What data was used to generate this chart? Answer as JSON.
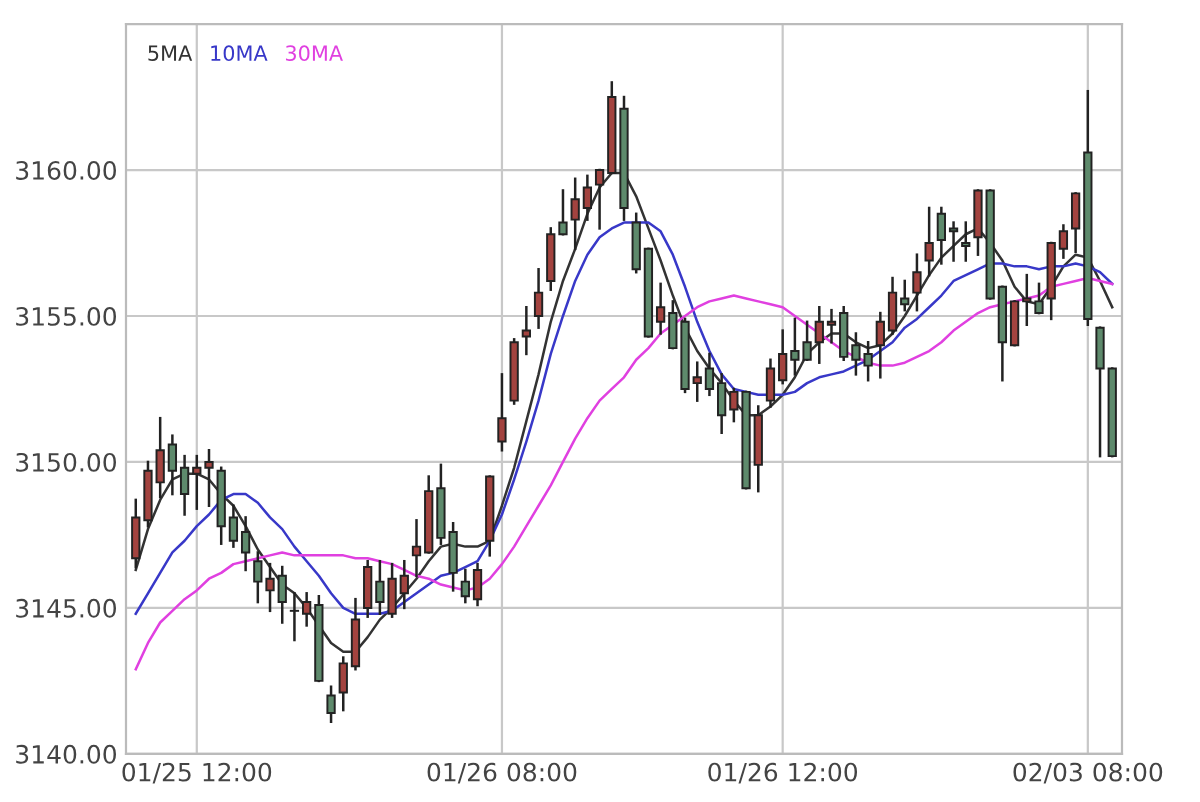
{
  "chart_data": {
    "type": "candlestick",
    "categories": [
      null,
      null,
      null,
      null,
      null,
      "01/25 12:00",
      null,
      null,
      null,
      null,
      null,
      null,
      null,
      null,
      null,
      null,
      null,
      null,
      null,
      null,
      null,
      null,
      null,
      null,
      null,
      null,
      null,
      null,
      null,
      null,
      "01/26 08:00",
      null,
      null,
      null,
      null,
      null,
      null,
      null,
      null,
      null,
      null,
      null,
      null,
      null,
      null,
      null,
      null,
      null,
      null,
      null,
      null,
      null,
      null,
      "01/26 12:00",
      null,
      null,
      null,
      null,
      null,
      null,
      null,
      null,
      null,
      null,
      null,
      null,
      null,
      null,
      null,
      null,
      null,
      null,
      null,
      null,
      null,
      null,
      null,
      null,
      "02/03 08:00",
      null,
      null
    ],
    "ohlc": [
      [
        3146.7,
        3148.7,
        3146.4,
        3148.1
      ],
      [
        3148.0,
        3150.0,
        3147.8,
        3149.7
      ],
      [
        3149.3,
        3151.5,
        3148.8,
        3150.4
      ],
      [
        3150.6,
        3150.9,
        3148.9,
        3149.7
      ],
      [
        3149.8,
        3150.2,
        3148.2,
        3148.9
      ],
      [
        3149.6,
        3150.2,
        3148.4,
        3149.8
      ],
      [
        3149.8,
        3150.4,
        3148.5,
        3150.0
      ],
      [
        3149.7,
        3149.8,
        3147.2,
        3147.8
      ],
      [
        3148.1,
        3148.5,
        3147.1,
        3147.3
      ],
      [
        3147.6,
        3148.1,
        3146.3,
        3146.9
      ],
      [
        3146.6,
        3146.9,
        3145.2,
        3145.9
      ],
      [
        3145.6,
        3146.5,
        3144.9,
        3146.0
      ],
      [
        3146.1,
        3146.4,
        3144.5,
        3145.2
      ],
      [
        3144.9,
        3145.5,
        3143.9,
        3144.9
      ],
      [
        3144.8,
        3145.5,
        3144.4,
        3145.2
      ],
      [
        3145.1,
        3145.4,
        3142.5,
        3142.5
      ],
      [
        3142.0,
        3142.3,
        3141.1,
        3141.4
      ],
      [
        3142.1,
        3143.3,
        3141.5,
        3143.1
      ],
      [
        3143.0,
        3145.3,
        3142.9,
        3144.6
      ],
      [
        3145.0,
        3146.6,
        3144.7,
        3146.4
      ],
      [
        3145.9,
        3146.6,
        3144.8,
        3145.2
      ],
      [
        3144.8,
        3146.5,
        3144.7,
        3146.0
      ],
      [
        3145.5,
        3146.6,
        3145.0,
        3146.1
      ],
      [
        3146.8,
        3148.0,
        3146.1,
        3147.1
      ],
      [
        3146.9,
        3149.5,
        3146.9,
        3149.0
      ],
      [
        3149.1,
        3149.9,
        3147.2,
        3147.4
      ],
      [
        3147.6,
        3147.9,
        3145.6,
        3146.2
      ],
      [
        3145.9,
        3146.3,
        3145.2,
        3145.4
      ],
      [
        3145.3,
        3146.5,
        3145.1,
        3146.3
      ],
      [
        3147.3,
        3149.5,
        3146.8,
        3149.5
      ],
      [
        3150.7,
        3153.0,
        3150.4,
        3151.5
      ],
      [
        3152.1,
        3154.2,
        3152.0,
        3154.1
      ],
      [
        3154.3,
        3155.3,
        3153.7,
        3154.5
      ],
      [
        3155.0,
        3156.6,
        3154.6,
        3155.8
      ],
      [
        3156.2,
        3158.0,
        3155.9,
        3157.8
      ],
      [
        3158.2,
        3159.3,
        3157.8,
        3157.8
      ],
      [
        3158.3,
        3159.7,
        3157.3,
        3159.0
      ],
      [
        3158.7,
        3159.8,
        3158.3,
        3159.4
      ],
      [
        3159.5,
        3160.0,
        3158.0,
        3160.0
      ],
      [
        3159.9,
        3163.0,
        3159.9,
        3162.5
      ],
      [
        3162.1,
        3162.5,
        3158.3,
        3158.7
      ],
      [
        3158.2,
        3158.5,
        3156.5,
        3156.6
      ],
      [
        3157.3,
        3157.3,
        3154.3,
        3154.3
      ],
      [
        3154.8,
        3156.1,
        3154.4,
        3155.3
      ],
      [
        3155.1,
        3155.5,
        3153.9,
        3153.9
      ],
      [
        3154.8,
        3154.9,
        3152.4,
        3152.5
      ],
      [
        3152.7,
        3153.4,
        3152.1,
        3152.9
      ],
      [
        3153.2,
        3153.7,
        3152.3,
        3152.5
      ],
      [
        3152.7,
        3153.0,
        3151.0,
        3151.6
      ],
      [
        3151.8,
        3152.5,
        3151.4,
        3152.4
      ],
      [
        3152.4,
        3152.4,
        3149.1,
        3149.1
      ],
      [
        3149.9,
        3151.9,
        3149.0,
        3151.6
      ],
      [
        3152.1,
        3153.5,
        3151.9,
        3153.2
      ],
      [
        3152.8,
        3154.5,
        3152.7,
        3153.7
      ],
      [
        3153.8,
        3154.9,
        3153.0,
        3153.5
      ],
      [
        3154.1,
        3154.8,
        3153.5,
        3153.5
      ],
      [
        3154.1,
        3155.3,
        3153.4,
        3154.8
      ],
      [
        3154.7,
        3155.2,
        3154.1,
        3154.8
      ],
      [
        3155.1,
        3155.3,
        3153.5,
        3153.6
      ],
      [
        3154.0,
        3154.4,
        3153.0,
        3153.5
      ],
      [
        3153.7,
        3154.1,
        3152.8,
        3153.3
      ],
      [
        3154.0,
        3155.1,
        3152.9,
        3154.8
      ],
      [
        3154.5,
        3156.3,
        3154.4,
        3155.8
      ],
      [
        3155.6,
        3156.2,
        3155.2,
        3155.4
      ],
      [
        3155.8,
        3157.1,
        3155.2,
        3156.5
      ],
      [
        3156.9,
        3158.7,
        3156.4,
        3157.5
      ],
      [
        3158.5,
        3158.7,
        3156.8,
        3157.6
      ],
      [
        3157.9,
        3158.2,
        3156.9,
        3158.0
      ],
      [
        3157.4,
        3158.2,
        3156.9,
        3157.5
      ],
      [
        3157.7,
        3159.3,
        3157.1,
        3159.3
      ],
      [
        3159.3,
        3159.3,
        3155.6,
        3155.6
      ],
      [
        3156.0,
        3156.0,
        3152.8,
        3154.1
      ],
      [
        3154.0,
        3155.5,
        3154.0,
        3155.5
      ],
      [
        3155.5,
        3156.4,
        3154.7,
        3155.6
      ],
      [
        3155.5,
        3156.1,
        3155.1,
        3155.1
      ],
      [
        3155.6,
        3157.5,
        3154.9,
        3157.5
      ],
      [
        3157.3,
        3158.1,
        3157.0,
        3157.9
      ],
      [
        3158.0,
        3159.2,
        3157.2,
        3159.2
      ],
      [
        3160.6,
        3162.7,
        3154.7,
        3154.9
      ],
      [
        3154.6,
        3154.6,
        3150.2,
        3153.2
      ],
      [
        3153.2,
        3153.2,
        3150.2,
        3150.2
      ]
    ],
    "colors": [
      "#a3433f",
      "#a3433f",
      "#a3433f",
      "#5e8a6c",
      "#5e8a6c",
      "#a3433f",
      "#a3433f",
      "#5e8a6c",
      "#5e8a6c",
      "#5e8a6c",
      "#5e8a6c",
      "#a3433f",
      "#5e8a6c",
      "#5e8a6c",
      "#a3433f",
      "#5e8a6c",
      "#5e8a6c",
      "#a3433f",
      "#a3433f",
      "#a3433f",
      "#5e8a6c",
      "#a3433f",
      "#a3433f",
      "#a3433f",
      "#a3433f",
      "#5e8a6c",
      "#5e8a6c",
      "#5e8a6c",
      "#a3433f",
      "#a3433f",
      "#a3433f",
      "#a3433f",
      "#a3433f",
      "#a3433f",
      "#a3433f",
      "#5e8a6c",
      "#a3433f",
      "#a3433f",
      "#a3433f",
      "#a3433f",
      "#5e8a6c",
      "#5e8a6c",
      "#5e8a6c",
      "#a3433f",
      "#5e8a6c",
      "#5e8a6c",
      "#a3433f",
      "#5e8a6c",
      "#5e8a6c",
      "#a3433f",
      "#5e8a6c",
      "#a3433f",
      "#a3433f",
      "#a3433f",
      "#5e8a6c",
      "#5e8a6c",
      "#a3433f",
      "#a3433f",
      "#5e8a6c",
      "#5e8a6c",
      "#5e8a6c",
      "#a3433f",
      "#a3433f",
      "#5e8a6c",
      "#a3433f",
      "#a3433f",
      "#5e8a6c",
      "#5e8a6c",
      "#5e8a6c",
      "#a3433f",
      "#5e8a6c",
      "#5e8a6c",
      "#a3433f",
      "#a3433f",
      "#5e8a6c",
      "#a3433f",
      "#a3433f",
      "#a3433f",
      "#5e8a6c",
      "#5e8a6c",
      "#5e8a6c"
    ],
    "series": [
      {
        "name": "5MA",
        "type": "line",
        "color": "#333333",
        "values": [
          3146.3,
          3147.7,
          3148.7,
          3149.4,
          3149.6,
          3149.6,
          3149.4,
          3148.9,
          3148.5,
          3147.8,
          3147.0,
          3146.4,
          3145.8,
          3145.5,
          3145.0,
          3144.4,
          3143.8,
          3143.5,
          3143.5,
          3144.0,
          3144.6,
          3145.0,
          3145.5,
          3146.0,
          3146.6,
          3147.1,
          3147.2,
          3147.1,
          3147.1,
          3147.3,
          3148.5,
          3149.8,
          3151.4,
          3153.0,
          3154.8,
          3156.2,
          3157.3,
          3158.5,
          3159.4,
          3159.9,
          3159.9,
          3159.1,
          3158.0,
          3156.9,
          3155.7,
          3154.6,
          3153.8,
          3153.2,
          3152.7,
          3152.1,
          3151.6,
          3151.6,
          3151.9,
          3152.3,
          3152.9,
          3153.7,
          3154.1,
          3154.4,
          3154.4,
          3154.1,
          3153.9,
          3154.0,
          3154.4,
          3155.0,
          3155.7,
          3156.4,
          3157.0,
          3157.4,
          3157.8,
          3158.0,
          3157.5,
          3156.9,
          3156.0,
          3155.5,
          3155.4,
          3156.0,
          3156.7,
          3157.1,
          3157.0,
          3156.2,
          3155.3
        ]
      },
      {
        "name": "10MA",
        "type": "line",
        "color": "#3838c8",
        "values": [
          3144.8,
          3145.5,
          3146.2,
          3146.9,
          3147.3,
          3147.8,
          3148.2,
          3148.7,
          3148.9,
          3148.9,
          3148.6,
          3148.1,
          3147.7,
          3147.1,
          3146.6,
          3146.1,
          3145.5,
          3145.0,
          3144.8,
          3144.8,
          3144.8,
          3144.9,
          3145.2,
          3145.5,
          3145.8,
          3146.1,
          3146.2,
          3146.4,
          3146.6,
          3147.3,
          3148.2,
          3149.4,
          3150.7,
          3152.1,
          3153.7,
          3155.0,
          3156.2,
          3157.1,
          3157.7,
          3158.0,
          3158.2,
          3158.2,
          3158.2,
          3157.9,
          3157.1,
          3156.0,
          3154.8,
          3153.8,
          3153.0,
          3152.5,
          3152.4,
          3152.3,
          3152.3,
          3152.3,
          3152.4,
          3152.7,
          3152.9,
          3153.0,
          3153.1,
          3153.3,
          3153.5,
          3153.8,
          3154.1,
          3154.6,
          3154.9,
          3155.3,
          3155.7,
          3156.2,
          3156.4,
          3156.6,
          3156.8,
          3156.8,
          3156.7,
          3156.7,
          3156.6,
          3156.7,
          3156.7,
          3156.8,
          3156.7,
          3156.5,
          3156.1
        ]
      },
      {
        "name": "30MA",
        "type": "line",
        "color": "#e040e0",
        "values": [
          3142.9,
          3143.8,
          3144.5,
          3144.9,
          3145.3,
          3145.6,
          3146.0,
          3146.2,
          3146.5,
          3146.6,
          3146.7,
          3146.8,
          3146.9,
          3146.8,
          3146.8,
          3146.8,
          3146.8,
          3146.8,
          3146.7,
          3146.7,
          3146.6,
          3146.5,
          3146.3,
          3146.1,
          3146.0,
          3145.8,
          3145.7,
          3145.6,
          3145.7,
          3146.0,
          3146.5,
          3147.1,
          3147.8,
          3148.5,
          3149.2,
          3150.0,
          3150.8,
          3151.5,
          3152.1,
          3152.5,
          3152.9,
          3153.5,
          3153.9,
          3154.4,
          3154.7,
          3155.0,
          3155.3,
          3155.5,
          3155.6,
          3155.7,
          3155.6,
          3155.5,
          3155.4,
          3155.3,
          3155.0,
          3154.7,
          3154.4,
          3154.1,
          3153.8,
          3153.6,
          3153.4,
          3153.3,
          3153.3,
          3153.4,
          3153.6,
          3153.8,
          3154.1,
          3154.5,
          3154.8,
          3155.1,
          3155.3,
          3155.4,
          3155.5,
          3155.6,
          3155.7,
          3156.0,
          3156.1,
          3156.2,
          3156.3,
          3156.2,
          3156.1
        ]
      }
    ],
    "ylim": [
      3140,
      3165
    ],
    "yticks": [
      {
        "value": 3140,
        "label": "3140.00"
      },
      {
        "value": 3145,
        "label": "3145.00"
      },
      {
        "value": 3150,
        "label": "3150.00"
      },
      {
        "value": 3155,
        "label": "3155.00"
      },
      {
        "value": 3160,
        "label": "3160.00"
      }
    ],
    "grid": true,
    "legend": "top left"
  }
}
